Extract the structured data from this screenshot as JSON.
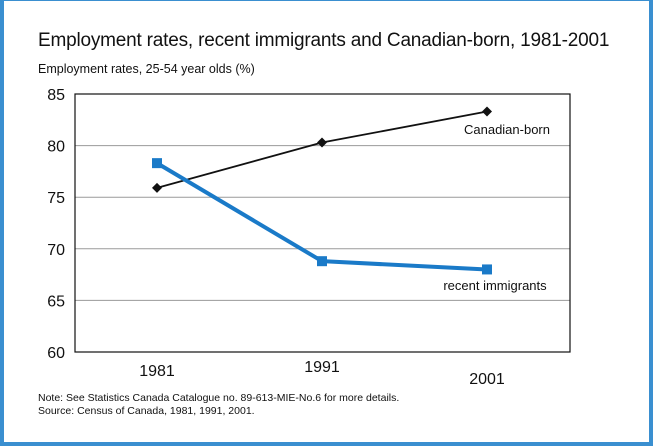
{
  "chart_data": {
    "type": "line",
    "title": "Employment rates, recent immigrants and Canadian-born, 1981-2001",
    "subtitle": "Employment rates, 25-54 year olds (%)",
    "categories": [
      "1981",
      "1991",
      "2001"
    ],
    "ylim": [
      60,
      85
    ],
    "yticks": [
      60,
      65,
      70,
      75,
      80,
      85
    ],
    "grid": true,
    "series": [
      {
        "name": "Canadian-born",
        "values": [
          75.9,
          80.3,
          83.3
        ],
        "color": "#111111",
        "marker": "diamond"
      },
      {
        "name": "recent immigrants",
        "values": [
          78.3,
          68.8,
          68.0
        ],
        "color": "#1a7ac8",
        "marker": "square"
      }
    ],
    "note": "Note: See Statistics Canada Catalogue no. 89-613-MIE-No.6 for more details.",
    "source": "Source: Census of Canada, 1981, 1991, 2001."
  }
}
